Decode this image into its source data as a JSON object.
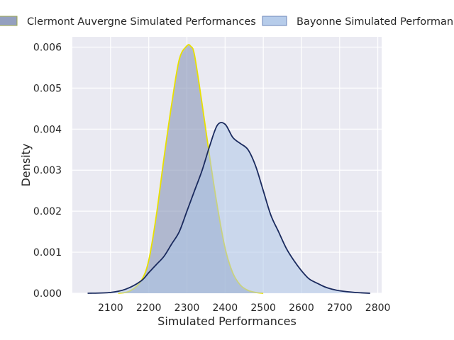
{
  "chart_data": {
    "type": "area",
    "title": "",
    "xlabel": "Simulated Performances",
    "ylabel": "Density",
    "xlim": [
      2000,
      2810
    ],
    "ylim": [
      0,
      0.00625
    ],
    "xticks": [
      2100,
      2200,
      2300,
      2400,
      2500,
      2600,
      2700,
      2800
    ],
    "yticks": [
      0.0,
      0.001,
      0.002,
      0.003,
      0.004,
      0.005,
      0.006
    ],
    "ytick_labels": [
      "0.000",
      "0.001",
      "0.002",
      "0.003",
      "0.004",
      "0.005",
      "0.006"
    ],
    "grid": true,
    "legend_position": "top",
    "series": [
      {
        "name": "Clermont Auvergne Simulated Performances",
        "fill_color": "#8896b8",
        "fill_opacity": 0.6,
        "line_color": "#e8e000",
        "x": [
          2120,
          2150,
          2180,
          2200,
          2220,
          2240,
          2260,
          2280,
          2300,
          2310,
          2320,
          2340,
          2360,
          2380,
          2400,
          2420,
          2440,
          2460,
          2480,
          2500
        ],
        "y": [
          0.0,
          5e-05,
          0.0003,
          0.0008,
          0.0019,
          0.0033,
          0.0046,
          0.0057,
          0.00603,
          0.00602,
          0.0058,
          0.0046,
          0.0033,
          0.0021,
          0.0011,
          0.0005,
          0.0002,
          7e-05,
          2e-05,
          0.0
        ]
      },
      {
        "name": "Bayonne Simulated Performances",
        "fill_color": "#aec7e8",
        "fill_opacity": 0.55,
        "line_color": "#1a2a5e",
        "x": [
          2040,
          2100,
          2140,
          2180,
          2200,
          2220,
          2240,
          2260,
          2280,
          2300,
          2320,
          2340,
          2360,
          2380,
          2400,
          2420,
          2440,
          2460,
          2480,
          2500,
          2520,
          2540,
          2560,
          2580,
          2600,
          2620,
          2640,
          2660,
          2680,
          2700,
          2740,
          2780
        ],
        "y": [
          0.0,
          2e-05,
          0.0001,
          0.0003,
          0.0005,
          0.0007,
          0.0009,
          0.0012,
          0.0015,
          0.002,
          0.0025,
          0.003,
          0.0036,
          0.0041,
          0.00412,
          0.0038,
          0.00365,
          0.0035,
          0.0031,
          0.0025,
          0.0019,
          0.0015,
          0.0011,
          0.0008,
          0.00055,
          0.00035,
          0.00025,
          0.00016,
          0.0001,
          6e-05,
          2e-05,
          0.0
        ]
      }
    ]
  }
}
